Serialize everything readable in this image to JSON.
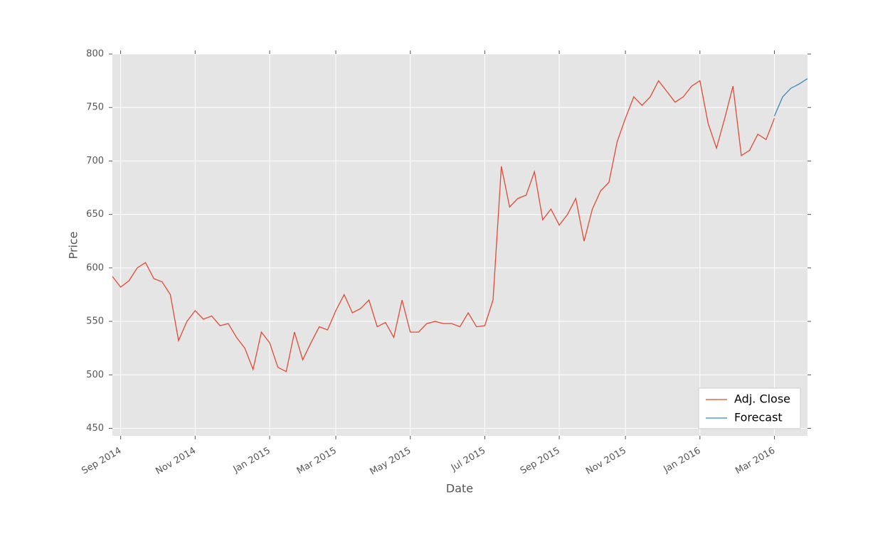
{
  "chart_data": {
    "type": "line",
    "x_label": "Date",
    "y_label": "Price",
    "categories": [
      null,
      "Sep 2014",
      null,
      null,
      null,
      null,
      null,
      null,
      null,
      null,
      "Nov 2014",
      null,
      null,
      null,
      null,
      null,
      null,
      null,
      null,
      "Jan 2015",
      null,
      null,
      null,
      null,
      null,
      null,
      null,
      "Mar 2015",
      null,
      null,
      null,
      null,
      null,
      null,
      null,
      null,
      "May 2015",
      null,
      null,
      null,
      null,
      null,
      null,
      null,
      null,
      "Jul 2015",
      null,
      null,
      null,
      null,
      null,
      null,
      null,
      null,
      "Sep 2015",
      null,
      null,
      null,
      null,
      null,
      null,
      null,
      "Nov 2015",
      null,
      null,
      null,
      null,
      null,
      null,
      null,
      null,
      "Jan 2016",
      null,
      null,
      null,
      null,
      null,
      null,
      null,
      null,
      "Mar 2016",
      null,
      null,
      null,
      null
    ],
    "series": [
      {
        "name": "Adj. Close",
        "color": "#e24a33",
        "values": [
          592,
          582,
          588,
          600,
          605,
          590,
          587,
          575,
          532,
          550,
          560,
          552,
          555,
          546,
          548,
          535,
          525,
          505,
          540,
          530,
          507,
          503,
          540,
          514,
          530,
          545,
          542,
          560,
          575,
          558,
          562,
          570,
          545,
          549,
          535,
          570,
          540,
          540,
          548,
          550,
          548,
          548,
          545,
          558,
          545,
          546,
          570,
          695,
          657,
          665,
          668,
          690,
          645,
          655,
          640,
          650,
          665,
          625,
          655,
          672,
          680,
          718,
          740,
          760,
          752,
          760,
          775,
          765,
          755,
          760,
          770,
          775,
          735,
          712,
          740,
          770,
          705,
          710,
          725,
          720,
          740,
          null,
          null,
          null,
          null
        ]
      },
      {
        "name": "Forecast",
        "color": "#348abd",
        "values": [
          null,
          null,
          null,
          null,
          null,
          null,
          null,
          null,
          null,
          null,
          null,
          null,
          null,
          null,
          null,
          null,
          null,
          null,
          null,
          null,
          null,
          null,
          null,
          null,
          null,
          null,
          null,
          null,
          null,
          null,
          null,
          null,
          null,
          null,
          null,
          null,
          null,
          null,
          null,
          null,
          null,
          null,
          null,
          null,
          null,
          null,
          null,
          null,
          null,
          null,
          null,
          null,
          null,
          null,
          null,
          null,
          null,
          null,
          null,
          null,
          null,
          null,
          null,
          null,
          null,
          null,
          null,
          null,
          null,
          null,
          null,
          null,
          null,
          null,
          null,
          null,
          null,
          null,
          null,
          null,
          742,
          760,
          768,
          772,
          777
        ]
      }
    ],
    "ylim": [
      443,
      800
    ],
    "yticks": [
      450,
      500,
      550,
      600,
      650,
      700,
      750,
      800
    ],
    "grid": true,
    "legend": "lower right",
    "background": "#e5e5e5"
  }
}
